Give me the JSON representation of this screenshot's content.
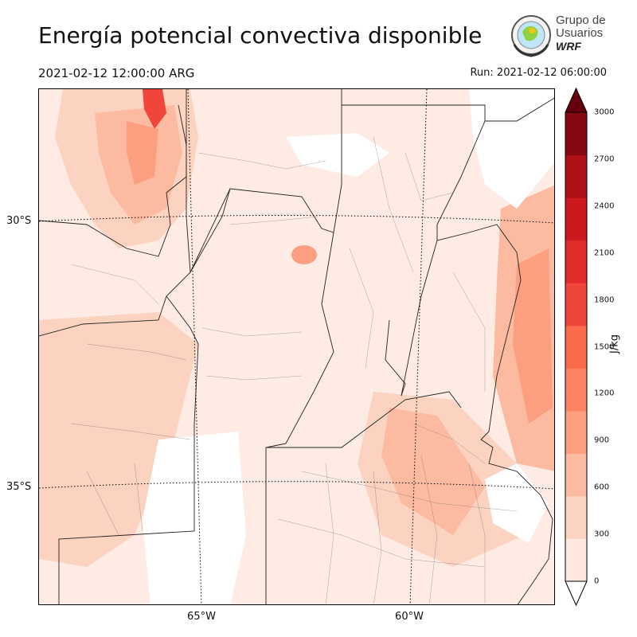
{
  "header": {
    "title": "Energía potencial convectiva disponible",
    "valid_time": "2021-02-12 12:00:00 ARG",
    "run_time": "Run: 2021-02-12 06:00:00"
  },
  "logo": {
    "line1": "Grupo de",
    "line2": "Usuarios",
    "line3": "WRF"
  },
  "map": {
    "variable": "CAPE",
    "latitude_labels": [
      "30°S",
      "35°S"
    ],
    "longitude_labels": [
      "65°W",
      "60°W"
    ],
    "gridline_style": "dotted",
    "shading_colormap": "Reds"
  },
  "colorbar": {
    "unit": "J/kg",
    "extend": "both",
    "levels": [
      0,
      300,
      600,
      900,
      1200,
      1500,
      1800,
      2100,
      2400,
      2700,
      3000
    ],
    "tick_labels": [
      "0",
      "300",
      "600",
      "900",
      "1200",
      "1500",
      "1800",
      "2100",
      "2400",
      "2700",
      "3000"
    ],
    "colors": [
      "#fee8e0",
      "#fcd3c1",
      "#fcbba1",
      "#fc9e80",
      "#fc8262",
      "#fb6a4a",
      "#f0453a",
      "#e12c2b",
      "#cc181e",
      "#ad1116",
      "#860811"
    ],
    "over_color": "#67000d",
    "under_color": "#ffffff"
  }
}
